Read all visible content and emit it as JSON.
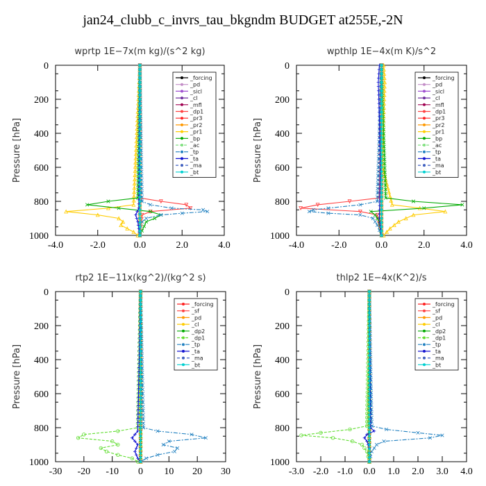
{
  "page": {
    "title": "jan24_clubb_c_invrs_tau_bkgndm  BUDGET at255E,-2N"
  },
  "chart_data": [
    {
      "type": "line",
      "title": "wprtp   1E−7x(m kg)/(s^2 kg)",
      "ylabel": "Pressure [hPa]",
      "xlim": [
        -4,
        4
      ],
      "ylim": [
        1000,
        0
      ],
      "xticks": [
        "-4.0",
        "-2.0",
        "0.0",
        "2.0",
        "4.0"
      ],
      "yticks": [
        "0",
        "200",
        "400",
        "600",
        "800",
        "1000"
      ],
      "grid": false,
      "legend_position": "top-right",
      "series": [
        {
          "name": "_forcing",
          "color": "#000000",
          "marker": "o",
          "dash": "",
          "p": [
            0,
            1000
          ],
          "x": [
            0,
            0
          ]
        },
        {
          "name": "_pd",
          "color": "#c38ec7",
          "marker": "s",
          "dash": "",
          "p": [
            0,
            1000
          ],
          "x": [
            0,
            0
          ]
        },
        {
          "name": "_sicl",
          "color": "#a050d0",
          "marker": "d",
          "dash": "",
          "p": [
            0,
            1000
          ],
          "x": [
            0,
            0
          ]
        },
        {
          "name": "_cl",
          "color": "#7030a0",
          "marker": "d",
          "dash": "",
          "p": [
            0,
            1000
          ],
          "x": [
            0,
            0
          ]
        },
        {
          "name": "_mfl",
          "color": "#a00050",
          "marker": "x",
          "dash": "",
          "p": [
            0,
            1000
          ],
          "x": [
            0,
            0
          ]
        },
        {
          "name": "_dp1",
          "color": "#ff4040",
          "marker": "v",
          "dash": "",
          "p": [
            0,
            780,
            800,
            820,
            840,
            860,
            880,
            1000
          ],
          "x": [
            0,
            0,
            1.0,
            2.2,
            2.4,
            0.5,
            0.1,
            0
          ]
        },
        {
          "name": "_pr3",
          "color": "#ff2020",
          "marker": "x",
          "dash": "",
          "p": [
            0,
            1000
          ],
          "x": [
            0,
            0
          ]
        },
        {
          "name": "_pr2",
          "color": "#ff9900",
          "marker": "^",
          "dash": "",
          "p": [
            0,
            1000
          ],
          "x": [
            0,
            0
          ]
        },
        {
          "name": "_pr1",
          "color": "#ffcc00",
          "marker": "^",
          "dash": "",
          "p": [
            0,
            820,
            840,
            860,
            880,
            900,
            920,
            940,
            960,
            980,
            1000
          ],
          "x": [
            0,
            -0.3,
            -1.5,
            -3.5,
            -2.0,
            -1.0,
            -0.8,
            -0.9,
            -0.6,
            -0.3,
            -0.1
          ]
        },
        {
          "name": "_bp",
          "color": "#00aa00",
          "marker": "x",
          "dash": "",
          "p": [
            0,
            780,
            800,
            820,
            840,
            860,
            880,
            900,
            920,
            1000
          ],
          "x": [
            0,
            -0.1,
            -1.5,
            -2.5,
            -1.0,
            0.5,
            1.0,
            0.7,
            0.3,
            0
          ]
        },
        {
          "name": "_ac",
          "color": "#80e080",
          "marker": "o",
          "dash": "4,2",
          "p": [
            0,
            1000
          ],
          "x": [
            0,
            0
          ]
        },
        {
          "name": "_tp",
          "color": "#2080c0",
          "marker": "x",
          "dash": "6,2,2,2",
          "p": [
            0,
            800,
            820,
            840,
            850,
            860,
            870,
            880,
            900,
            920,
            950,
            1000
          ],
          "x": [
            0,
            0.1,
            0.5,
            1.5,
            3.0,
            3.2,
            2.0,
            1.0,
            0.3,
            0.1,
            0,
            0
          ]
        },
        {
          "name": "_ta",
          "color": "#1010d0",
          "marker": "+",
          "dash": "",
          "p": [
            0,
            840,
            880,
            920,
            960,
            1000
          ],
          "x": [
            0,
            -0.05,
            -0.2,
            -0.1,
            -0.05,
            0
          ]
        },
        {
          "name": "_ma",
          "color": "#4060c0",
          "marker": "",
          "dash": "4,3",
          "p": [
            0,
            1000
          ],
          "x": [
            0,
            0
          ]
        },
        {
          "name": "_bt",
          "color": "#00d0d0",
          "marker": "d",
          "dash": "",
          "p": [
            0,
            1000
          ],
          "x": [
            0,
            0
          ]
        }
      ]
    },
    {
      "type": "line",
      "title": "wpthlp   1E−4x(m K)/s^2",
      "ylabel": "Pressure [hPa]",
      "xlim": [
        -4,
        4
      ],
      "ylim": [
        1000,
        0
      ],
      "xticks": [
        "-4.0",
        "-2.0",
        "0.0",
        "2.0",
        "4.0"
      ],
      "yticks": [
        "0",
        "200",
        "400",
        "600",
        "800",
        "1000"
      ],
      "grid": false,
      "legend_position": "top-right",
      "series": [
        {
          "name": "_forcing",
          "color": "#000000",
          "marker": "o",
          "dash": "",
          "p": [
            0,
            1000
          ],
          "x": [
            0,
            0
          ]
        },
        {
          "name": "_pd",
          "color": "#c38ec7",
          "marker": "s",
          "dash": "",
          "p": [
            0,
            1000
          ],
          "x": [
            0,
            0
          ]
        },
        {
          "name": "_sicl",
          "color": "#a050d0",
          "marker": "d",
          "dash": "",
          "p": [
            0,
            1000
          ],
          "x": [
            0,
            0
          ]
        },
        {
          "name": "_cl",
          "color": "#7030a0",
          "marker": "d",
          "dash": "",
          "p": [
            0,
            1000
          ],
          "x": [
            0,
            0
          ]
        },
        {
          "name": "_mfl",
          "color": "#a00050",
          "marker": "x",
          "dash": "",
          "p": [
            0,
            1000
          ],
          "x": [
            0,
            0
          ]
        },
        {
          "name": "_dp1",
          "color": "#ff4040",
          "marker": "v",
          "dash": "",
          "p": [
            0,
            780,
            800,
            820,
            840,
            860,
            880,
            1000
          ],
          "x": [
            0,
            -0.1,
            -1.5,
            -3.0,
            -3.8,
            -1.0,
            -0.2,
            0
          ]
        },
        {
          "name": "_pr3",
          "color": "#ff2020",
          "marker": "x",
          "dash": "",
          "p": [
            0,
            1000
          ],
          "x": [
            0,
            0
          ]
        },
        {
          "name": "_pr2",
          "color": "#ff9900",
          "marker": "^",
          "dash": "",
          "p": [
            0,
            1000
          ],
          "x": [
            0,
            0
          ]
        },
        {
          "name": "_pr1",
          "color": "#ffcc00",
          "marker": "^",
          "dash": "",
          "p": [
            0,
            100,
            300,
            600,
            820,
            840,
            860,
            880,
            920,
            960,
            1000
          ],
          "x": [
            0.1,
            0.15,
            0.1,
            0.05,
            0.5,
            1.8,
            3.0,
            1.5,
            0.8,
            0.4,
            0.1
          ]
        },
        {
          "name": "_bp",
          "color": "#00aa00",
          "marker": "x",
          "dash": "",
          "p": [
            0,
            780,
            800,
            820,
            840,
            860,
            880,
            920,
            1000
          ],
          "x": [
            0,
            0.2,
            1.5,
            3.8,
            2.0,
            -0.5,
            -0.3,
            -0.1,
            0
          ]
        },
        {
          "name": "_ac",
          "color": "#80e080",
          "marker": "o",
          "dash": "4,2",
          "p": [
            0,
            1000
          ],
          "x": [
            0,
            0
          ]
        },
        {
          "name": "_tp",
          "color": "#2080c0",
          "marker": "x",
          "dash": "6,2,2,2",
          "p": [
            0,
            800,
            820,
            840,
            850,
            860,
            870,
            880,
            900,
            940,
            1000
          ],
          "x": [
            0,
            -0.2,
            -1.0,
            -2.5,
            -3.2,
            -3.4,
            -2.5,
            -1.0,
            -0.4,
            -0.2,
            0
          ]
        },
        {
          "name": "_ta",
          "color": "#1010d0",
          "marker": "+",
          "dash": "",
          "p": [
            0,
            100,
            300,
            600,
            900,
            1000
          ],
          "x": [
            -0.1,
            -0.15,
            -0.1,
            -0.05,
            -0.1,
            0
          ]
        },
        {
          "name": "_ma",
          "color": "#4060c0",
          "marker": "",
          "dash": "4,3",
          "p": [
            0,
            1000
          ],
          "x": [
            0,
            0
          ]
        },
        {
          "name": "_bt",
          "color": "#00d0d0",
          "marker": "d",
          "dash": "",
          "p": [
            0,
            1000
          ],
          "x": [
            0,
            0
          ]
        }
      ]
    },
    {
      "type": "line",
      "title": "rtp2   1E−11x(kg^2)/(kg^2 s)",
      "ylabel": "Pressure [hPa]",
      "xlim": [
        -30,
        30
      ],
      "ylim": [
        1000,
        0
      ],
      "xticks": [
        "-30",
        "-20",
        "-10",
        "0",
        "10",
        "20",
        "30"
      ],
      "yticks": [
        "0",
        "200",
        "400",
        "600",
        "800",
        "1000"
      ],
      "grid": false,
      "legend_position": "top-right",
      "series": [
        {
          "name": "_forcing",
          "color": "#ff2020",
          "marker": "x",
          "dash": "",
          "p": [
            0,
            1000
          ],
          "x": [
            0,
            0
          ]
        },
        {
          "name": "_sf",
          "color": "#ff4040",
          "marker": "v",
          "dash": "",
          "p": [
            0,
            1000
          ],
          "x": [
            0,
            0
          ]
        },
        {
          "name": "_pd",
          "color": "#ff9900",
          "marker": "^",
          "dash": "",
          "p": [
            0,
            1000
          ],
          "x": [
            0,
            0
          ]
        },
        {
          "name": "_cl",
          "color": "#ffcc00",
          "marker": "^",
          "dash": "",
          "p": [
            0,
            1000
          ],
          "x": [
            0,
            0
          ]
        },
        {
          "name": "_dp2",
          "color": "#00aa00",
          "marker": "x",
          "dash": "",
          "p": [
            0,
            1000
          ],
          "x": [
            0,
            0
          ]
        },
        {
          "name": "_dp1",
          "color": "#60dd30",
          "marker": "o",
          "dash": "4,2",
          "p": [
            0,
            800,
            820,
            840,
            860,
            880,
            900,
            920,
            940,
            960,
            980,
            1000
          ],
          "x": [
            0,
            -1,
            -8,
            -20,
            -22,
            -10,
            -8,
            -14,
            -12,
            -8,
            -3,
            -1
          ]
        },
        {
          "name": "_tp",
          "color": "#2080c0",
          "marker": "x",
          "dash": "6,2,2,2",
          "p": [
            0,
            800,
            820,
            840,
            860,
            880,
            900,
            920,
            940,
            960,
            980,
            1000
          ],
          "x": [
            0,
            1,
            6,
            18,
            23,
            10,
            8,
            13,
            12,
            6,
            2,
            0
          ]
        },
        {
          "name": "_ta",
          "color": "#1010d0",
          "marker": "+",
          "dash": "",
          "p": [
            0,
            820,
            860,
            900,
            940,
            980,
            1000
          ],
          "x": [
            0,
            -1,
            -3,
            -1,
            -2,
            -1,
            0
          ]
        },
        {
          "name": "_ma",
          "color": "#4060c0",
          "marker": "",
          "dash": "4,3",
          "p": [
            0,
            1000
          ],
          "x": [
            0,
            0
          ]
        },
        {
          "name": "_bt",
          "color": "#00d0d0",
          "marker": "d",
          "dash": "",
          "p": [
            0,
            1000
          ],
          "x": [
            0,
            0
          ]
        }
      ]
    },
    {
      "type": "line",
      "title": "thlp2   1E−4x(K^2)/s",
      "ylabel": "Pressure [hPa]",
      "xlim": [
        -3,
        4
      ],
      "ylim": [
        1000,
        0
      ],
      "xticks": [
        "-3.0",
        "-2.0",
        "-1.0",
        "0.0",
        "1.0",
        "2.0",
        "3.0",
        "4.0"
      ],
      "yticks": [
        "0",
        "200",
        "400",
        "600",
        "800",
        "1000"
      ],
      "grid": false,
      "legend_position": "top-right",
      "series": [
        {
          "name": "_forcing",
          "color": "#ff2020",
          "marker": "x",
          "dash": "",
          "p": [
            0,
            1000
          ],
          "x": [
            0,
            0
          ]
        },
        {
          "name": "_sf",
          "color": "#ff4040",
          "marker": "v",
          "dash": "",
          "p": [
            0,
            1000
          ],
          "x": [
            0,
            0
          ]
        },
        {
          "name": "_pd",
          "color": "#ff9900",
          "marker": "^",
          "dash": "",
          "p": [
            0,
            1000
          ],
          "x": [
            0,
            0
          ]
        },
        {
          "name": "_cl",
          "color": "#ffcc00",
          "marker": "^",
          "dash": "",
          "p": [
            0,
            1000
          ],
          "x": [
            0,
            0
          ]
        },
        {
          "name": "_dp2",
          "color": "#00aa00",
          "marker": "x",
          "dash": "",
          "p": [
            0,
            1000
          ],
          "x": [
            0,
            0
          ]
        },
        {
          "name": "_dp1",
          "color": "#60dd30",
          "marker": "o",
          "dash": "4,2",
          "p": [
            0,
            790,
            810,
            830,
            845,
            860,
            880,
            900,
            940,
            1000
          ],
          "x": [
            0,
            -0.1,
            -0.8,
            -2.0,
            -2.8,
            -1.5,
            -0.7,
            -0.3,
            -0.1,
            0
          ]
        },
        {
          "name": "_tp",
          "color": "#2080c0",
          "marker": "x",
          "dash": "6,2,2,2",
          "p": [
            0,
            790,
            810,
            830,
            845,
            860,
            880,
            900,
            940,
            1000
          ],
          "x": [
            0,
            0.1,
            0.7,
            2.0,
            3.0,
            2.5,
            0.6,
            0.3,
            0.1,
            0
          ]
        },
        {
          "name": "_ta",
          "color": "#1010d0",
          "marker": "+",
          "dash": "",
          "p": [
            0,
            800,
            820,
            840,
            860,
            880,
            920,
            1000
          ],
          "x": [
            0,
            0.05,
            0.2,
            -0.1,
            -0.2,
            -0.1,
            0,
            0
          ]
        },
        {
          "name": "_ma",
          "color": "#4060c0",
          "marker": "",
          "dash": "4,3",
          "p": [
            0,
            1000
          ],
          "x": [
            0,
            0
          ]
        },
        {
          "name": "_bt",
          "color": "#00d0d0",
          "marker": "d",
          "dash": "",
          "p": [
            0,
            1000
          ],
          "x": [
            0,
            0
          ]
        }
      ]
    }
  ]
}
